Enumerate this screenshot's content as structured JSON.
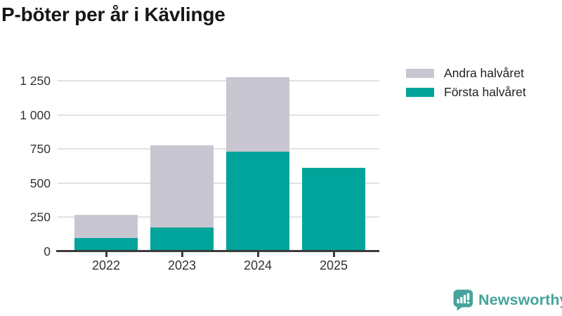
{
  "title": "P-böter per år i Kävlinge",
  "colors": {
    "first_half": "#00a49b",
    "second_half": "#c8c6d0",
    "grid": "#e2e2e2",
    "axis": "#3b3b3b",
    "tick_text": "#333333",
    "title_text": "#161616",
    "logo": "#46a39b"
  },
  "legend": [
    {
      "label": "Andra halvåret",
      "color_key": "second_half"
    },
    {
      "label": "Första halvåret",
      "color_key": "first_half"
    }
  ],
  "chart_data": {
    "type": "bar",
    "stacked": true,
    "title": "P-böter per år i Kävlinge",
    "xlabel": "",
    "ylabel": "",
    "categories": [
      "2022",
      "2023",
      "2024",
      "2025"
    ],
    "series": [
      {
        "name": "Första halvåret",
        "color_key": "first_half",
        "values": [
          100,
          175,
          730,
          610
        ]
      },
      {
        "name": "Andra halvåret",
        "color_key": "second_half",
        "values": [
          165,
          600,
          545,
          0
        ]
      }
    ],
    "totals": [
      265,
      775,
      1275,
      610
    ],
    "ylim": [
      0,
      1300
    ],
    "yticks": [
      0,
      250,
      500,
      750,
      1000,
      1250
    ],
    "ytick_labels": [
      "0",
      "250",
      "500",
      "750",
      "1 000",
      "1 250"
    ],
    "grid": true,
    "legend_position": "top-right"
  },
  "footer": {
    "brand": "Newsworthy"
  }
}
